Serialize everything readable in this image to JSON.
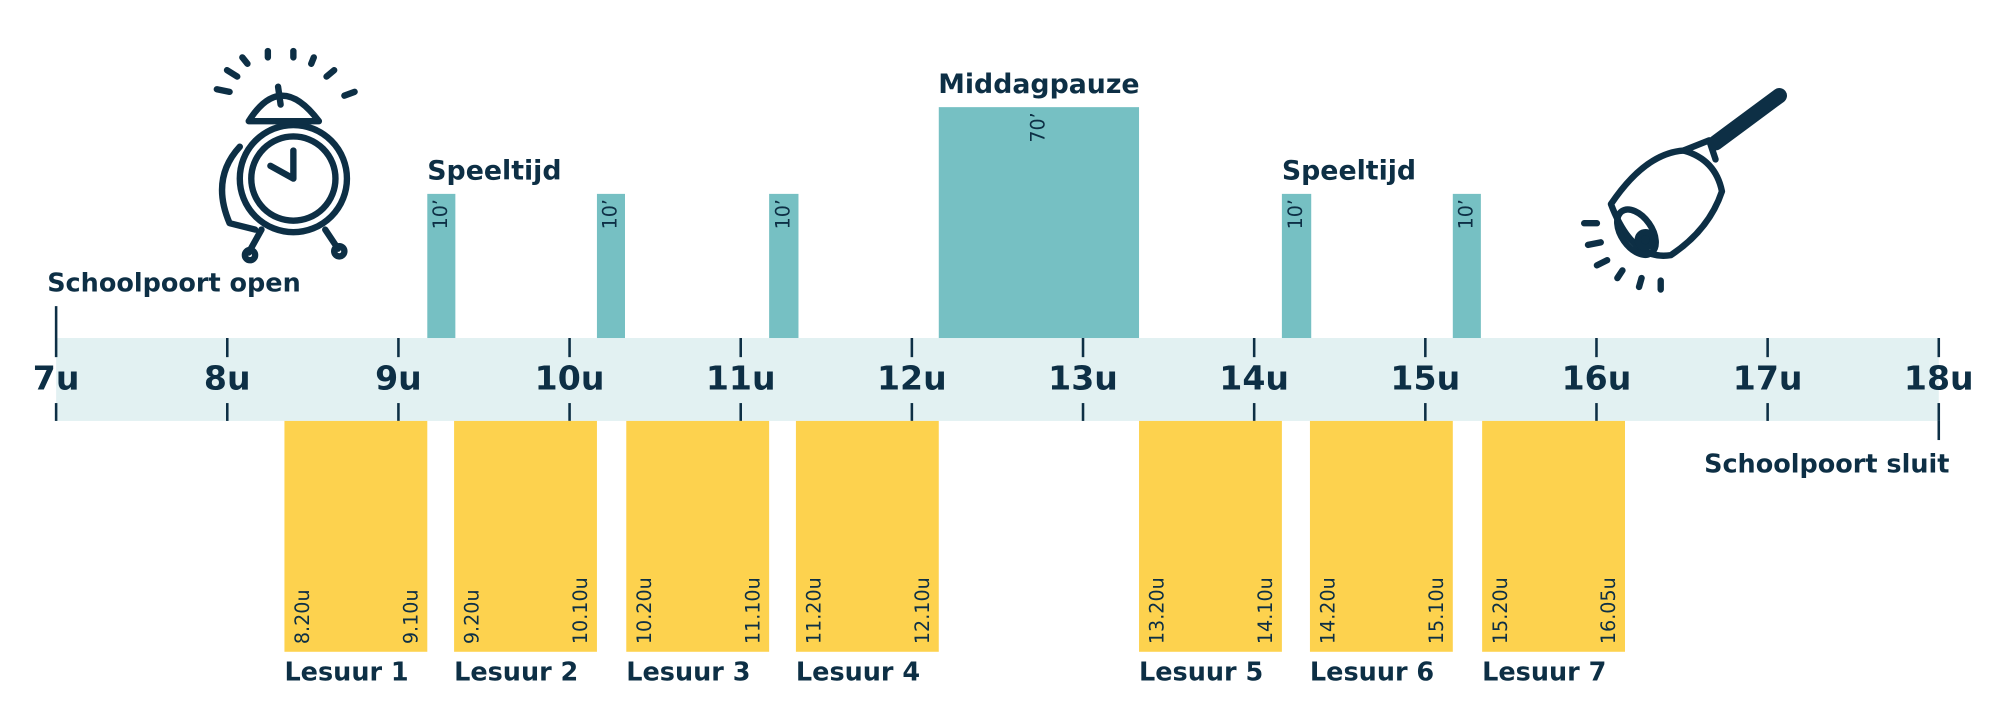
{
  "hours": [
    "7u",
    "8u",
    "9u",
    "10u",
    "11u",
    "12u",
    "13u",
    "14u",
    "15u",
    "16u",
    "17u",
    "18u"
  ],
  "gate": {
    "open": "Schoolpoort open",
    "close": "Schoolpoort sluit"
  },
  "breaks": [
    {
      "title": "Speeltijd",
      "duration": "10’"
    },
    {
      "duration": "10’"
    },
    {
      "duration": "10’"
    },
    {
      "title": "Middagpauze",
      "duration": "70’"
    },
    {
      "title": "Speeltijd",
      "duration": "10’"
    },
    {
      "duration": "10’"
    }
  ],
  "lessons": [
    {
      "name": "Lesuur 1",
      "start": "8.20u",
      "end": "9.10u"
    },
    {
      "name": "Lesuur 2",
      "start": "9.20u",
      "end": "10.10u"
    },
    {
      "name": "Lesuur 3",
      "start": "10.20u",
      "end": "11.10u"
    },
    {
      "name": "Lesuur 4",
      "start": "11.20u",
      "end": "12.10u"
    },
    {
      "name": "Lesuur 5",
      "start": "13.20u",
      "end": "14.10u"
    },
    {
      "name": "Lesuur 6",
      "start": "14.20u",
      "end": "15.10u"
    },
    {
      "name": "Lesuur 7",
      "start": "15.20u",
      "end": "16.05u"
    }
  ]
}
